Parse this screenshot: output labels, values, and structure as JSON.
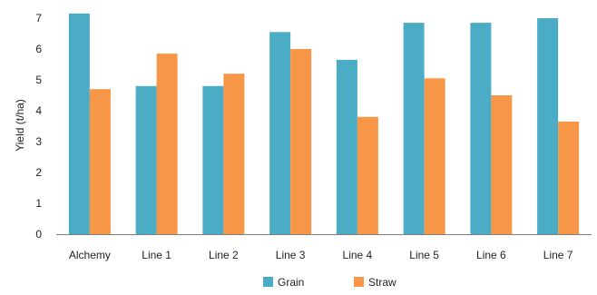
{
  "chart_data": {
    "type": "bar",
    "title": "",
    "xlabel": "",
    "ylabel": "Yield (t/ha)",
    "ylim": [
      0,
      7
    ],
    "yticks": [
      0,
      1,
      2,
      3,
      4,
      5,
      6,
      7
    ],
    "grid": false,
    "legend_position": "bottom",
    "categories": [
      "Alchemy",
      "Line 1",
      "Line 2",
      "Line 3",
      "Line 4",
      "Line 5",
      "Line 6",
      "Line 7"
    ],
    "series": [
      {
        "name": "Grain",
        "color": "#4bacc6",
        "values": [
          7.15,
          4.8,
          4.8,
          6.55,
          5.65,
          6.85,
          6.85,
          7.0
        ]
      },
      {
        "name": "Straw",
        "color": "#f79646",
        "values": [
          4.7,
          5.85,
          5.2,
          6.0,
          3.8,
          5.05,
          4.5,
          3.65
        ]
      }
    ]
  }
}
